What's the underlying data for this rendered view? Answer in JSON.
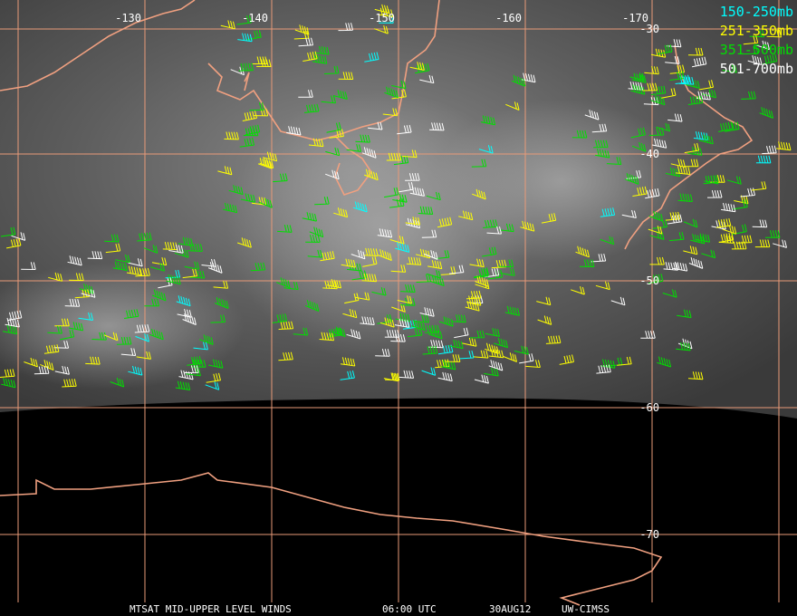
{
  "map": {
    "longitude_labels": [
      "-130",
      "-140",
      "-150",
      "-160",
      "-170"
    ],
    "latitude_labels": [
      "-30",
      "-40",
      "-50",
      "-60",
      "-70"
    ],
    "legend": [
      {
        "label": "150-250mb",
        "color": "#00ffff"
      },
      {
        "label": "251-350mb",
        "color": "#ffff00"
      },
      {
        "label": "351-500mb",
        "color": "#00e000"
      },
      {
        "label": "501-700mb",
        "color": "#ffffff"
      }
    ],
    "footer": [
      "MTSAT MID-UPPER LEVEL WINDS",
      "06:00 UTC",
      "30AUG12",
      "UW-CIMSS"
    ]
  }
}
